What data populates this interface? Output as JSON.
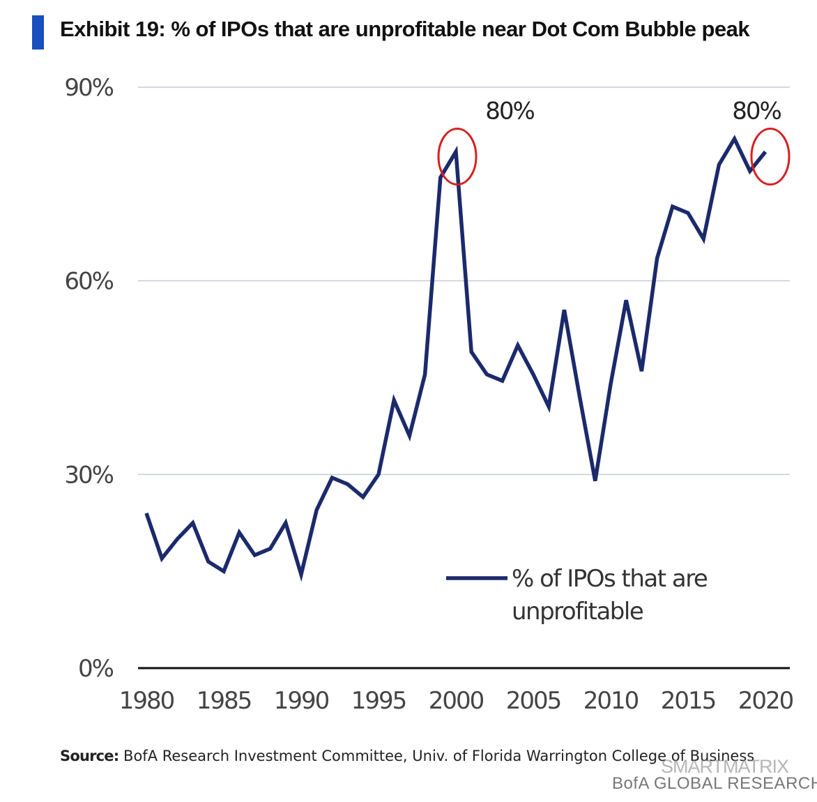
{
  "header": {
    "title": "Exhibit 19: % of IPOs that are unprofitable near Dot Com Bubble peak",
    "accent_color": "#1a4fbf"
  },
  "source": {
    "label": "Source:",
    "text": "BofA Research Investment Committee, Univ. of Florida Warrington College of Business"
  },
  "watermark": {
    "text": "SMARTMATRIX"
  },
  "footer": {
    "brand": "BofA GLOBAL RESEARCH"
  },
  "chart_data": {
    "type": "line",
    "title": "Exhibit 19: % of IPOs that are unprofitable near Dot Com Bubble peak",
    "xlabel": "",
    "ylabel": "",
    "xlim": [
      1980,
      2020
    ],
    "ylim": [
      0,
      90
    ],
    "y_ticks": [
      {
        "value": 0,
        "label": "0%"
      },
      {
        "value": 30,
        "label": "30%"
      },
      {
        "value": 60,
        "label": "60%"
      },
      {
        "value": 90,
        "label": "90%"
      }
    ],
    "x_ticks": [
      {
        "value": 1980,
        "label": "1980"
      },
      {
        "value": 1985,
        "label": "1985"
      },
      {
        "value": 1990,
        "label": "1990"
      },
      {
        "value": 1995,
        "label": "1995"
      },
      {
        "value": 2000,
        "label": "2000"
      },
      {
        "value": 2005,
        "label": "2005"
      },
      {
        "value": 2010,
        "label": "2010"
      },
      {
        "value": 2015,
        "label": "2015"
      },
      {
        "value": 2020,
        "label": "2020"
      }
    ],
    "grid": true,
    "series_color": "#1b2a6b",
    "highlight_color": "#d62020",
    "legend": {
      "position": "bottom-right",
      "lines": [
        "% of IPOs that are",
        "unprofitable"
      ]
    },
    "series": [
      {
        "name": "% of IPOs that are unprofitable",
        "x": [
          1980,
          1981,
          1982,
          1983,
          1984,
          1985,
          1986,
          1987,
          1988,
          1989,
          1990,
          1991,
          1992,
          1993,
          1994,
          1995,
          1996,
          1997,
          1998,
          1999,
          2000,
          2001,
          2002,
          2003,
          2004,
          2005,
          2006,
          2007,
          2008,
          2009,
          2010,
          2011,
          2012,
          2013,
          2014,
          2015,
          2016,
          2017,
          2018,
          2019,
          2020
        ],
        "values": [
          24,
          17,
          20,
          22.5,
          16.5,
          15,
          21,
          17.5,
          18.5,
          22.5,
          14.5,
          24.5,
          29.5,
          28.5,
          26.5,
          30,
          41.5,
          36,
          45.5,
          76,
          80,
          49,
          45.5,
          44.5,
          50,
          45.5,
          40.5,
          55.5,
          42,
          29,
          44,
          57,
          46,
          63.5,
          71.5,
          70.5,
          66.5,
          78,
          82,
          77,
          80
        ]
      }
    ],
    "annotations": [
      {
        "x": 2000,
        "y": 80,
        "label": "80%"
      },
      {
        "x": 2020,
        "y": 80,
        "label": "80%"
      }
    ]
  }
}
